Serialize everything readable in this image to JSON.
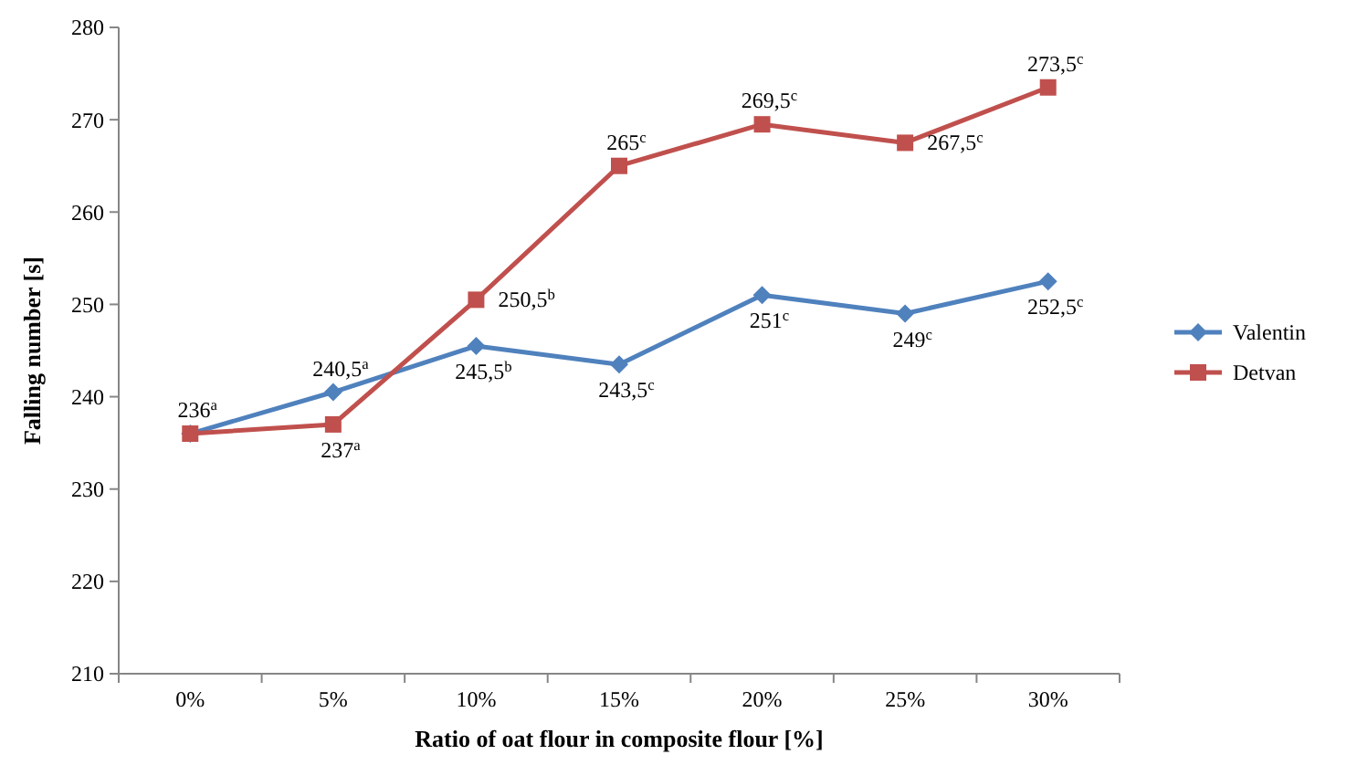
{
  "chart_data": {
    "type": "line",
    "xlabel": "Ratio of oat flour in composite flour [%]",
    "ylabel": "Falling number [s]",
    "categories": [
      "0%",
      "5%",
      "10%",
      "15%",
      "20%",
      "25%",
      "30%"
    ],
    "ylim": [
      210,
      280
    ],
    "yticks": [
      210,
      220,
      230,
      240,
      250,
      260,
      270,
      280
    ],
    "grid": false,
    "legend": "right",
    "series": [
      {
        "name": "Valentin",
        "color": "#4f81bd",
        "marker": "diamond",
        "values": [
          236,
          240.5,
          245.5,
          243.5,
          251,
          249,
          252.5
        ],
        "value_labels": [
          "236$^{a}$",
          "240,5$^{a}$",
          "245,5$^{b}$",
          "243,5$^{c}$",
          "251$^{c}$",
          "249$^{c}$",
          "252,5$^{c}$"
        ]
      },
      {
        "name": "Detvan",
        "color": "#c0504d",
        "marker": "square",
        "values": [
          236,
          237,
          250.5,
          265,
          269.5,
          267.5,
          273.5
        ],
        "value_labels": [
          null,
          "237$^{a}$",
          "250,5$^{b}$",
          "265$^{c}$",
          "269,5$^{c}$",
          "267,5$^{c}$",
          "273,5$^{c}$"
        ]
      }
    ]
  }
}
